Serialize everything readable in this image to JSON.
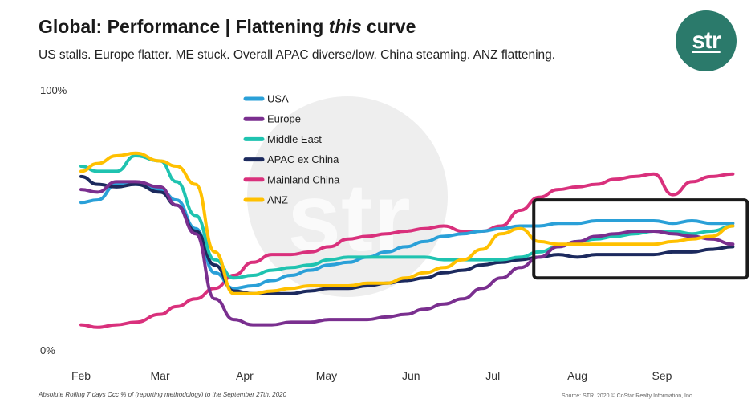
{
  "title": {
    "prefix": "Global: Performance | Flattening ",
    "emphasis": "this",
    "suffix": " curve"
  },
  "subtitle": "US stalls. Europe flatter. ME stuck. Overall APAC diverse/low. China steaming. ANZ flattening.",
  "logo_text": "str",
  "watermark_text": "str",
  "footnote": "Absolute Rolling 7 days Occ % of (reporting methodology) to the September 27th, 2020",
  "source": "Source: STR. 2020 © CoStar Realty Information, Inc.",
  "chart_data": {
    "type": "line",
    "title": "",
    "xlabel": "",
    "ylabel": "",
    "ylim": [
      0,
      100
    ],
    "y_ticks": [
      "100%",
      "0%"
    ],
    "x_ticks": [
      "Feb",
      "Mar",
      "Apr",
      "May",
      "Jun",
      "Jul",
      "Aug",
      "Sep"
    ],
    "x_tick_dates": [
      "2020-02-01",
      "2020-03-01",
      "2020-04-01",
      "2020-05-01",
      "2020-06-01",
      "2020-07-01",
      "2020-08-01",
      "2020-09-01"
    ],
    "xlim": [
      "2020-02-01",
      "2020-09-27"
    ],
    "legend_position": "top-center",
    "grid": false,
    "x": [
      "2020-02-01",
      "2020-02-07",
      "2020-02-14",
      "2020-02-21",
      "2020-03-01",
      "2020-03-07",
      "2020-03-14",
      "2020-03-21",
      "2020-03-28",
      "2020-04-04",
      "2020-04-11",
      "2020-04-18",
      "2020-04-25",
      "2020-05-02",
      "2020-05-09",
      "2020-05-16",
      "2020-05-23",
      "2020-05-30",
      "2020-06-06",
      "2020-06-13",
      "2020-06-20",
      "2020-06-27",
      "2020-07-04",
      "2020-07-11",
      "2020-07-18",
      "2020-07-25",
      "2020-08-01",
      "2020-08-08",
      "2020-08-15",
      "2020-08-22",
      "2020-08-29",
      "2020-09-05",
      "2020-09-12",
      "2020-09-19",
      "2020-09-27"
    ],
    "series": [
      {
        "name": "USA",
        "color": "#2aa0d8",
        "values": [
          57,
          58,
          64,
          64,
          62,
          58,
          47,
          30,
          24,
          25,
          27,
          29,
          31,
          33,
          34,
          36,
          38,
          40,
          42,
          44,
          45,
          46,
          47,
          48,
          48,
          49,
          49,
          50,
          50,
          50,
          50,
          49,
          50,
          49,
          49
        ]
      },
      {
        "name": "Europe",
        "color": "#7a2f8f",
        "values": [
          62,
          61,
          65,
          65,
          63,
          56,
          45,
          20,
          12,
          10,
          10,
          11,
          11,
          12,
          12,
          12,
          13,
          14,
          16,
          18,
          20,
          24,
          28,
          32,
          36,
          40,
          42,
          44,
          45,
          46,
          46,
          45,
          44,
          43,
          41
        ]
      },
      {
        "name": "Middle East",
        "color": "#1fc3b0",
        "values": [
          71,
          69,
          69,
          75,
          73,
          65,
          52,
          35,
          28,
          29,
          31,
          32,
          33,
          35,
          36,
          36,
          36,
          36,
          36,
          35,
          35,
          35,
          35,
          36,
          38,
          40,
          42,
          43,
          44,
          45,
          46,
          46,
          45,
          46,
          48
        ]
      },
      {
        "name": "APAC ex China",
        "color": "#1c2a5e",
        "values": [
          67,
          64,
          63,
          64,
          61,
          56,
          46,
          33,
          23,
          22,
          22,
          22,
          23,
          24,
          24,
          25,
          26,
          27,
          28,
          30,
          31,
          33,
          34,
          35,
          36,
          37,
          36,
          37,
          37,
          37,
          37,
          38,
          38,
          39,
          40
        ]
      },
      {
        "name": "Mainland China",
        "color": "#d9307c",
        "values": [
          10,
          9,
          10,
          11,
          14,
          17,
          20,
          24,
          29,
          34,
          37,
          37,
          38,
          40,
          43,
          44,
          45,
          46,
          47,
          48,
          46,
          46,
          48,
          54,
          59,
          62,
          63,
          64,
          66,
          67,
          68,
          60,
          65,
          67,
          68
        ]
      },
      {
        "name": "ANZ",
        "color": "#ffc000",
        "values": [
          69,
          72,
          75,
          76,
          73,
          71,
          64,
          38,
          22,
          22,
          23,
          24,
          25,
          25,
          25,
          26,
          26,
          28,
          30,
          32,
          35,
          39,
          45,
          47,
          42,
          41,
          41,
          41,
          41,
          41,
          41,
          42,
          43,
          44,
          48
        ]
      }
    ],
    "annotations": [
      {
        "type": "box",
        "x_start": "2020-07-16",
        "x_end": "2020-09-27",
        "y_low": 28,
        "y_high": 58,
        "color": "#1a1a1a"
      }
    ]
  }
}
